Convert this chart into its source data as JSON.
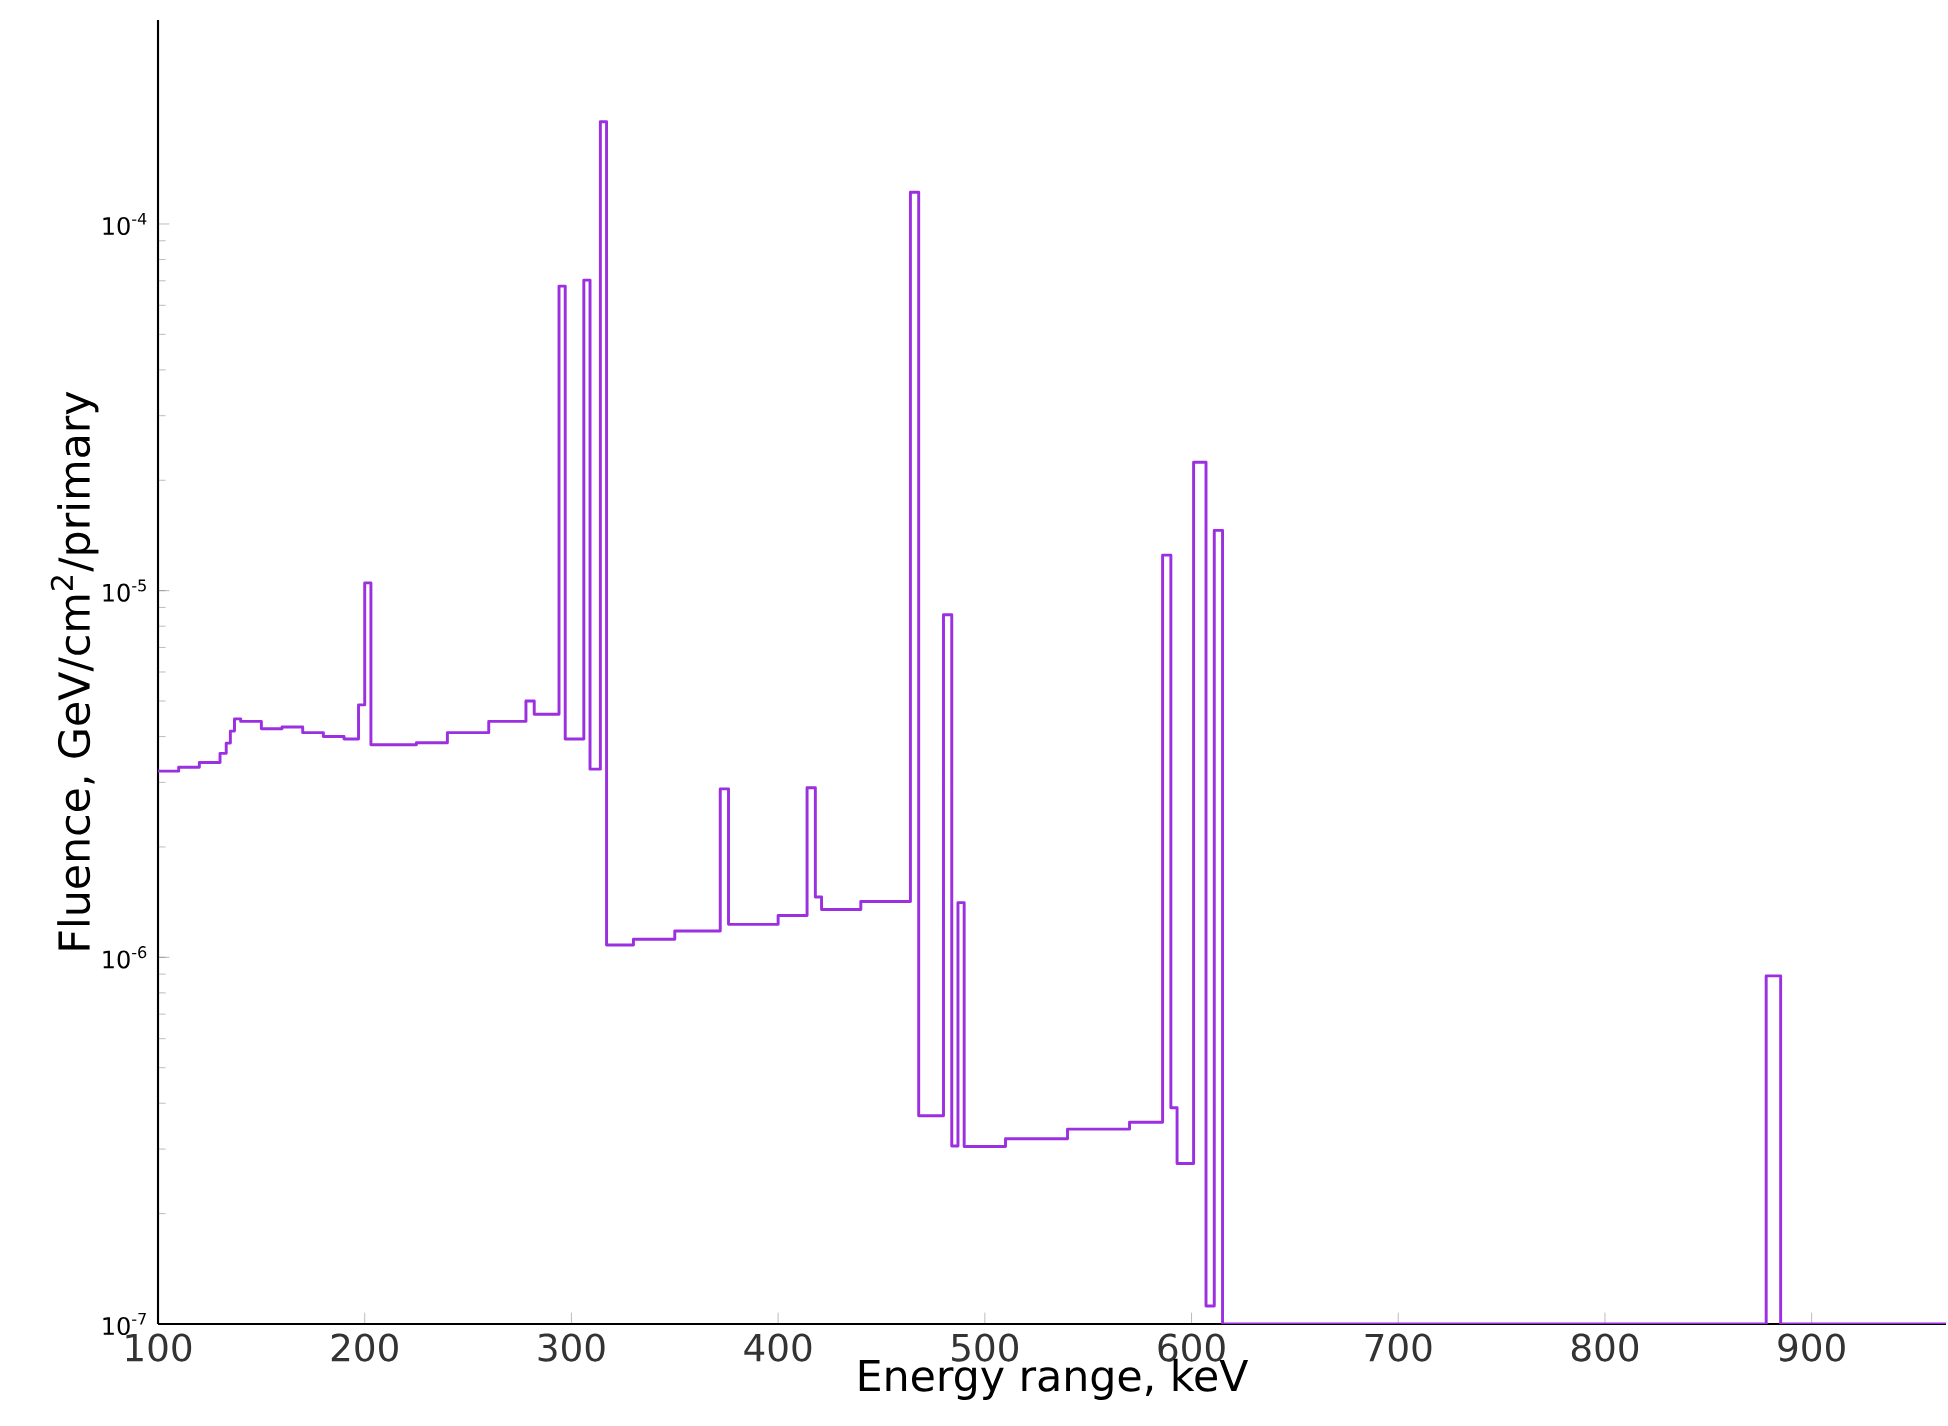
{
  "chart_data": {
    "type": "histogram",
    "xlabel": "Energy range, keV",
    "ylabel": "Fluence, GeV/cm$^{2}$/primary",
    "bins": [
      100,
      110,
      120,
      130,
      133,
      135,
      137,
      140,
      150,
      160,
      170,
      180,
      190,
      197,
      200,
      203,
      215,
      225,
      240,
      260,
      278,
      282,
      294,
      297,
      306,
      309,
      314,
      317,
      330,
      350,
      372,
      376,
      400,
      414,
      418,
      421,
      440,
      464,
      468,
      480,
      484,
      487,
      490,
      510,
      540,
      570,
      586,
      590,
      593,
      601,
      607,
      611,
      615,
      878,
      885,
      965
    ],
    "series": [
      {
        "color": "#9b30e0",
        "values": [
          3.22e-06,
          3.3e-06,
          3.4e-06,
          3.6e-06,
          3.84e-06,
          4.14e-06,
          4.47e-06,
          4.4e-06,
          4.2e-06,
          4.25e-06,
          4.1e-06,
          4e-06,
          3.94e-06,
          4.88e-06,
          1.05e-05,
          3.8e-06,
          3.8e-06,
          3.85e-06,
          4.1e-06,
          4.4e-06,
          5e-06,
          4.6e-06,
          6.77e-05,
          3.94e-06,
          7.03e-05,
          3.26e-06,
          0.00019,
          1.08e-06,
          1.12e-06,
          1.18e-06,
          2.88e-06,
          1.23e-06,
          1.3e-06,
          2.9e-06,
          1.46e-06,
          1.35e-06,
          1.42e-06,
          0.000122,
          3.7e-07,
          8.6e-06,
          3.06e-07,
          1.41e-06,
          3.05e-07,
          3.2e-07,
          3.4e-07,
          3.55e-07,
          1.25e-05,
          3.89e-07,
          2.74e-07,
          2.24e-05,
          1.12e-07,
          1.46e-05,
          null,
          8.9e-07,
          null
        ]
      }
    ],
    "log": "y",
    "xlim": [
      100,
      965
    ],
    "ylim": [
      1e-07,
      0.00036
    ],
    "xticks": [
      100,
      200,
      300,
      400,
      500,
      600,
      700,
      800,
      900
    ],
    "yticks": [
      {
        "value": 1e-07,
        "label": "10$^{-7}$"
      },
      {
        "value": 1e-06,
        "label": "10$^{-6}$"
      },
      {
        "value": 1e-05,
        "label": "10$^{-5}$"
      },
      {
        "value": 0.0001,
        "label": "10$^{-4}$"
      }
    ]
  }
}
